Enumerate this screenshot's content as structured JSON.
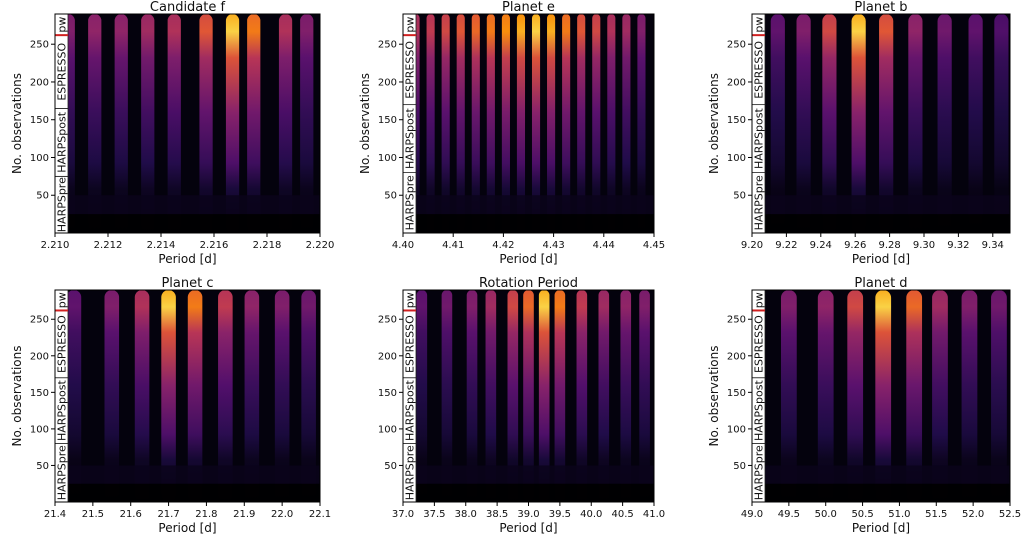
{
  "figure": {
    "shared_ylabel": "No. observations",
    "shared_xlabel": "Period [d]",
    "instrument_labels": [
      "HARPSpre",
      "HARPSpost",
      "ESPRESSO",
      "pw"
    ]
  },
  "chart_data": [
    {
      "type": "heatmap",
      "title": "Candidate f",
      "xlabel": "Period [d]",
      "ylabel": "No. observations",
      "xlim": [
        2.21,
        2.22
      ],
      "ylim": [
        0,
        290
      ],
      "xticks": [
        "2.210",
        "2.212",
        "2.214",
        "2.216",
        "2.218",
        "2.220"
      ],
      "yticks": [
        "50",
        "100",
        "150",
        "200",
        "250"
      ],
      "instrument_boundaries": [
        75,
        165,
        262,
        290
      ],
      "peaks": [
        {
          "period": 2.2105,
          "strength": 0.45
        },
        {
          "period": 2.2115,
          "strength": 0.5
        },
        {
          "period": 2.2125,
          "strength": 0.5
        },
        {
          "period": 2.2135,
          "strength": 0.55
        },
        {
          "period": 2.2145,
          "strength": 0.6
        },
        {
          "period": 2.2157,
          "strength": 0.75
        },
        {
          "period": 2.2167,
          "strength": 1.0
        },
        {
          "period": 2.2175,
          "strength": 0.85
        },
        {
          "period": 2.2187,
          "strength": 0.6
        },
        {
          "period": 2.2195,
          "strength": 0.45
        }
      ],
      "colormap": "inferno"
    },
    {
      "type": "heatmap",
      "title": "Planet e",
      "xlabel": "Period [d]",
      "ylabel": "No. observations",
      "xlim": [
        4.4,
        4.45
      ],
      "ylim": [
        0,
        290
      ],
      "xticks": [
        "4.40",
        "4.41",
        "4.42",
        "4.43",
        "4.44",
        "4.45"
      ],
      "yticks": [
        "50",
        "100",
        "150",
        "200",
        "250"
      ],
      "instrument_boundaries": [
        80,
        170,
        262,
        290
      ],
      "peaks": [
        {
          "period": 4.4025,
          "strength": 0.6
        },
        {
          "period": 4.4055,
          "strength": 0.65
        },
        {
          "period": 4.4085,
          "strength": 0.7
        },
        {
          "period": 4.4115,
          "strength": 0.75
        },
        {
          "period": 4.4145,
          "strength": 0.8
        },
        {
          "period": 4.4175,
          "strength": 0.85
        },
        {
          "period": 4.4205,
          "strength": 0.9
        },
        {
          "period": 4.4235,
          "strength": 0.95
        },
        {
          "period": 4.4265,
          "strength": 1.0
        },
        {
          "period": 4.4295,
          "strength": 0.95
        },
        {
          "period": 4.4325,
          "strength": 0.85
        },
        {
          "period": 4.4355,
          "strength": 0.75
        },
        {
          "period": 4.4385,
          "strength": 0.7
        },
        {
          "period": 4.4415,
          "strength": 0.6
        },
        {
          "period": 4.4445,
          "strength": 0.55
        },
        {
          "period": 4.4475,
          "strength": 0.45
        }
      ],
      "colormap": "inferno"
    },
    {
      "type": "heatmap",
      "title": "Planet b",
      "xlabel": "Period [d]",
      "ylabel": "No. observations",
      "xlim": [
        9.2,
        9.35
      ],
      "ylim": [
        0,
        290
      ],
      "xticks": [
        "9.20",
        "9.22",
        "9.24",
        "9.26",
        "9.28",
        "9.30",
        "9.32",
        "9.34"
      ],
      "yticks": [
        "50",
        "100",
        "150",
        "200",
        "250"
      ],
      "instrument_boundaries": [
        80,
        170,
        262,
        290
      ],
      "peaks": [
        {
          "period": 9.215,
          "strength": 0.35
        },
        {
          "period": 9.23,
          "strength": 0.45
        },
        {
          "period": 9.245,
          "strength": 0.7
        },
        {
          "period": 9.262,
          "strength": 1.0
        },
        {
          "period": 9.278,
          "strength": 0.75
        },
        {
          "period": 9.295,
          "strength": 0.5
        },
        {
          "period": 9.312,
          "strength": 0.4
        },
        {
          "period": 9.33,
          "strength": 0.35
        },
        {
          "period": 9.345,
          "strength": 0.3
        }
      ],
      "colormap": "inferno"
    },
    {
      "type": "heatmap",
      "title": "Planet c",
      "xlabel": "Period [d]",
      "ylabel": "No. observations",
      "xlim": [
        21.4,
        22.1
      ],
      "ylim": [
        0,
        290
      ],
      "xticks": [
        "21.4",
        "21.5",
        "21.6",
        "21.7",
        "21.8",
        "21.9",
        "22.0",
        "22.1"
      ],
      "yticks": [
        "50",
        "100",
        "150",
        "200",
        "250"
      ],
      "instrument_boundaries": [
        80,
        170,
        262,
        290
      ],
      "peaks": [
        {
          "period": 21.45,
          "strength": 0.35
        },
        {
          "period": 21.55,
          "strength": 0.45
        },
        {
          "period": 21.63,
          "strength": 0.6
        },
        {
          "period": 21.7,
          "strength": 1.0
        },
        {
          "period": 21.77,
          "strength": 0.85
        },
        {
          "period": 21.85,
          "strength": 0.65
        },
        {
          "period": 21.92,
          "strength": 0.5
        },
        {
          "period": 22.0,
          "strength": 0.45
        },
        {
          "period": 22.07,
          "strength": 0.4
        }
      ],
      "colormap": "inferno"
    },
    {
      "type": "heatmap",
      "title": "Rotation Period",
      "xlabel": "Period [d]",
      "ylabel": "",
      "xlim": [
        37.0,
        41.0
      ],
      "ylim": [
        0,
        290
      ],
      "xticks": [
        "37.0",
        "37.5",
        "38.0",
        "38.5",
        "39.0",
        "39.5",
        "40.0",
        "40.5",
        "41.0"
      ],
      "yticks": [
        "50",
        "100",
        "150",
        "200",
        "250"
      ],
      "instrument_boundaries": [
        80,
        170,
        262,
        290
      ],
      "peaks": [
        {
          "period": 37.3,
          "strength": 0.35
        },
        {
          "period": 37.7,
          "strength": 0.4
        },
        {
          "period": 38.1,
          "strength": 0.45
        },
        {
          "period": 38.4,
          "strength": 0.55
        },
        {
          "period": 38.75,
          "strength": 0.7
        },
        {
          "period": 39.0,
          "strength": 0.8
        },
        {
          "period": 39.25,
          "strength": 1.0
        },
        {
          "period": 39.5,
          "strength": 0.85
        },
        {
          "period": 39.85,
          "strength": 0.65
        },
        {
          "period": 40.2,
          "strength": 0.55
        },
        {
          "period": 40.55,
          "strength": 0.5
        },
        {
          "period": 40.85,
          "strength": 0.45
        }
      ],
      "colormap": "inferno"
    },
    {
      "type": "heatmap",
      "title": "Planet d",
      "xlabel": "Period [d]",
      "ylabel": "No. observations",
      "xlim": [
        49.0,
        52.5
      ],
      "ylim": [
        0,
        290
      ],
      "xticks": [
        "49.0",
        "49.5",
        "50.0",
        "50.5",
        "51.0",
        "51.5",
        "52.0",
        "52.5"
      ],
      "yticks": [
        "50",
        "100",
        "150",
        "200",
        "250"
      ],
      "instrument_boundaries": [
        80,
        170,
        262,
        290
      ],
      "peaks": [
        {
          "period": 49.5,
          "strength": 0.45
        },
        {
          "period": 50.0,
          "strength": 0.5
        },
        {
          "period": 50.4,
          "strength": 0.7
        },
        {
          "period": 50.78,
          "strength": 1.0
        },
        {
          "period": 51.2,
          "strength": 0.8
        },
        {
          "period": 51.55,
          "strength": 0.55
        },
        {
          "period": 51.95,
          "strength": 0.45
        },
        {
          "period": 52.35,
          "strength": 0.4
        }
      ],
      "colormap": "inferno"
    }
  ]
}
